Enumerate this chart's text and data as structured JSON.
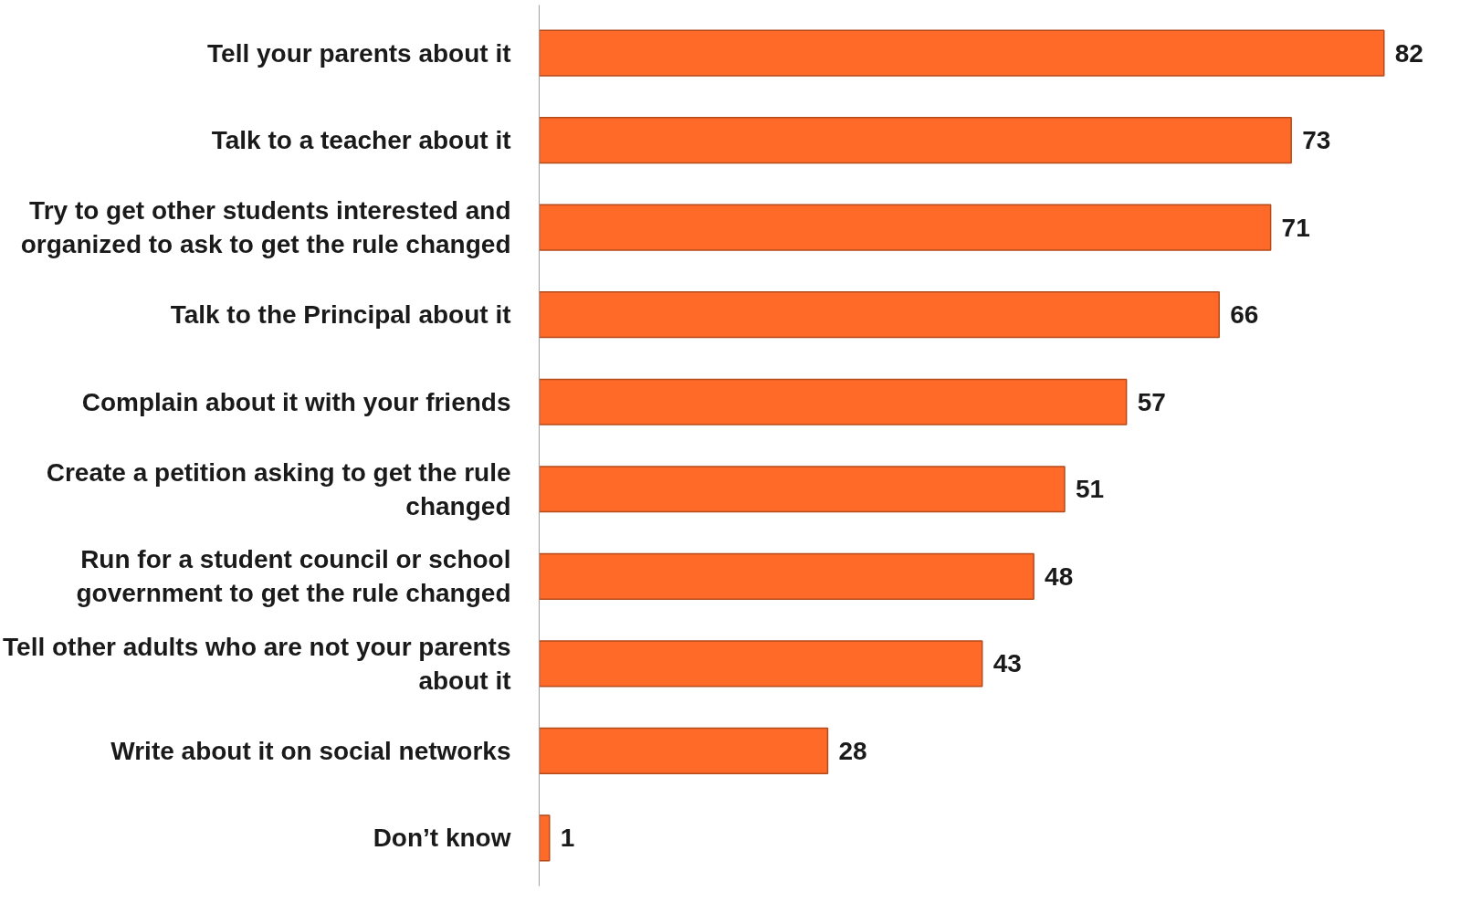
{
  "chart_data": {
    "type": "bar",
    "orientation": "horizontal",
    "categories": [
      "Tell your parents about it",
      "Talk to a teacher about it",
      "Try to get other students interested and organized to ask to get the rule changed",
      "Talk to the Principal about it",
      "Complain about it with your friends",
      "Create a petition asking to get the rule changed",
      "Run for a student council or school government to get the rule changed",
      "Tell other adults who are not your parents about it",
      "Write about it on social networks",
      "Don’t know"
    ],
    "values": [
      82,
      73,
      71,
      66,
      57,
      51,
      48,
      43,
      28,
      1
    ],
    "color": "#ff6a28",
    "data_labels": true,
    "grid": false,
    "tick_labels": "y"
  }
}
